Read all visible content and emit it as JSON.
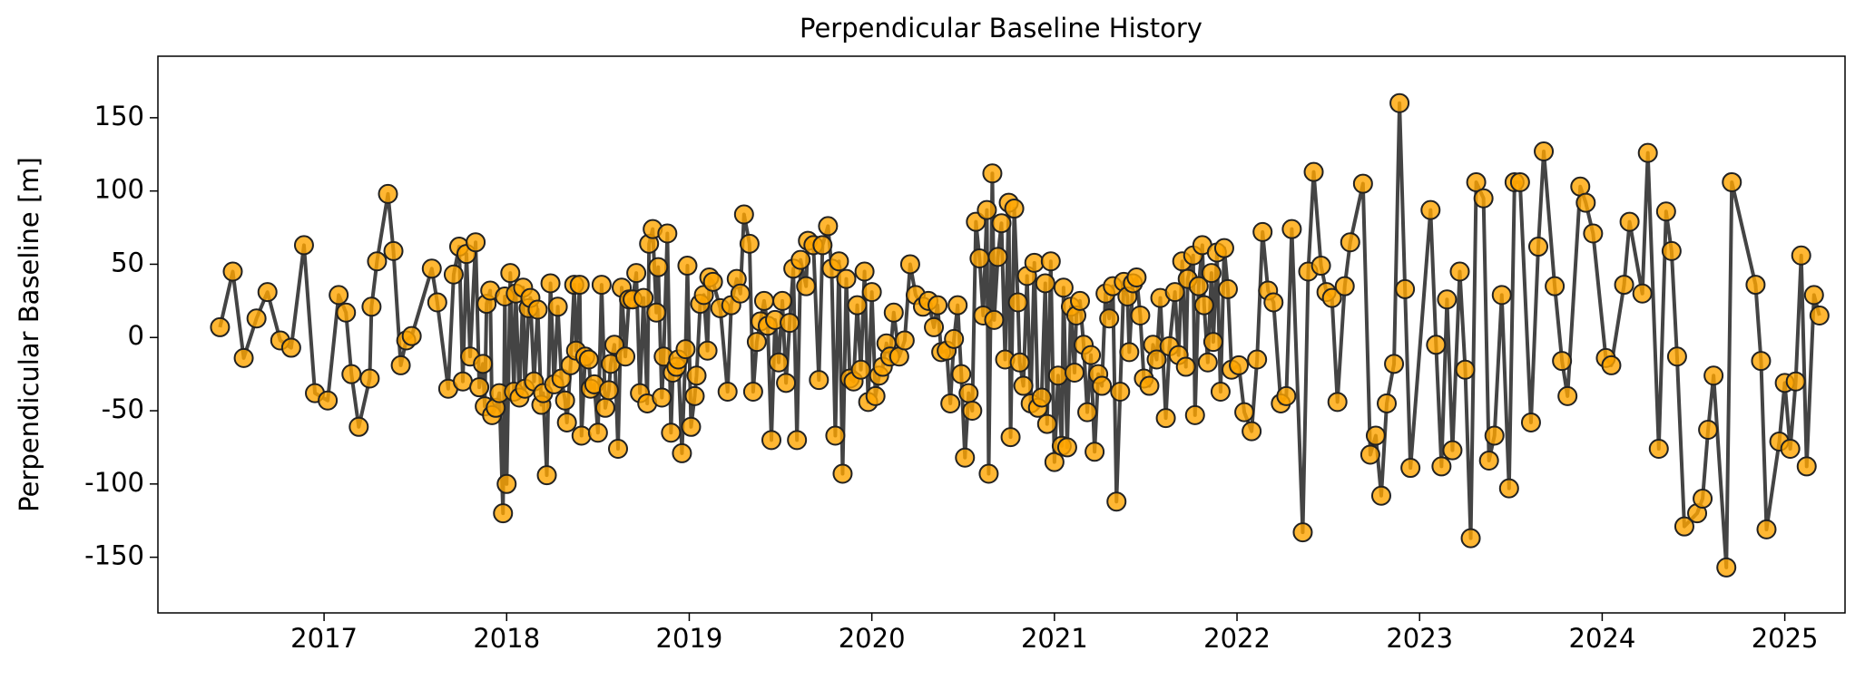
{
  "chart_data": {
    "type": "line",
    "title": "Perpendicular Baseline History",
    "ylabel": "Perpendicular Baseline [m]",
    "color": "#ffa500",
    "line_color": "#444444",
    "xlim": [
      2016.09,
      2025.33
    ],
    "xticks": [
      2017,
      2018,
      2019,
      2020,
      2021,
      2022,
      2023,
      2024,
      2025
    ],
    "ylim": [
      -188,
      192
    ],
    "yticks": [
      -150,
      -100,
      -50,
      0,
      50,
      100,
      150
    ],
    "x": [
      2016.43,
      2016.5,
      2016.56,
      2016.63,
      2016.69,
      2016.76,
      2016.82,
      2016.89,
      2016.95,
      2017.02,
      2017.08,
      2017.12,
      2017.15,
      2017.19,
      2017.25,
      2017.26,
      2017.29,
      2017.35,
      2017.38,
      2017.42,
      2017.45,
      2017.48,
      2017.59,
      2017.62,
      2017.68,
      2017.71,
      2017.74,
      2017.76,
      2017.78,
      2017.8,
      2017.83,
      2017.85,
      2017.87,
      2017.88,
      2017.89,
      2017.91,
      2017.92,
      2017.94,
      2017.96,
      2017.98,
      2017.99,
      2018.0,
      2018.02,
      2018.04,
      2018.05,
      2018.07,
      2018.09,
      2018.1,
      2018.12,
      2018.13,
      2018.15,
      2018.17,
      2018.19,
      2018.2,
      2018.22,
      2018.24,
      2018.26,
      2018.28,
      2018.3,
      2018.32,
      2018.33,
      2018.35,
      2018.37,
      2018.38,
      2018.4,
      2018.41,
      2018.43,
      2018.45,
      2018.46,
      2018.48,
      2018.5,
      2018.52,
      2018.54,
      2018.56,
      2018.57,
      2018.59,
      2018.61,
      2018.63,
      2018.65,
      2018.67,
      2018.69,
      2018.71,
      2018.73,
      2018.75,
      2018.77,
      2018.78,
      2018.8,
      2018.82,
      2018.83,
      2018.85,
      2018.86,
      2018.88,
      2018.9,
      2018.91,
      2018.93,
      2018.94,
      2018.96,
      2018.98,
      2018.99,
      2019.01,
      2019.03,
      2019.04,
      2019.06,
      2019.08,
      2019.1,
      2019.11,
      2019.13,
      2019.17,
      2019.21,
      2019.23,
      2019.26,
      2019.28,
      2019.3,
      2019.33,
      2019.35,
      2019.37,
      2019.39,
      2019.41,
      2019.43,
      2019.45,
      2019.47,
      2019.49,
      2019.51,
      2019.53,
      2019.55,
      2019.57,
      2019.59,
      2019.61,
      2019.64,
      2019.65,
      2019.68,
      2019.71,
      2019.73,
      2019.76,
      2019.78,
      2019.8,
      2019.82,
      2019.84,
      2019.86,
      2019.88,
      2019.9,
      2019.92,
      2019.94,
      2019.96,
      2019.98,
      2020.0,
      2020.02,
      2020.04,
      2020.06,
      2020.08,
      2020.1,
      2020.12,
      2020.15,
      2020.18,
      2020.21,
      2020.24,
      2020.28,
      2020.31,
      2020.34,
      2020.36,
      2020.38,
      2020.41,
      2020.43,
      2020.45,
      2020.47,
      2020.49,
      2020.51,
      2020.53,
      2020.55,
      2020.57,
      2020.59,
      2020.61,
      2020.63,
      2020.64,
      2020.66,
      2020.67,
      2020.69,
      2020.71,
      2020.73,
      2020.75,
      2020.76,
      2020.78,
      2020.8,
      2020.81,
      2020.83,
      2020.85,
      2020.87,
      2020.89,
      2020.91,
      2020.93,
      2020.95,
      2020.96,
      2020.98,
      2021.0,
      2021.02,
      2021.04,
      2021.05,
      2021.07,
      2021.09,
      2021.11,
      2021.12,
      2021.14,
      2021.16,
      2021.18,
      2021.2,
      2021.22,
      2021.24,
      2021.26,
      2021.28,
      2021.3,
      2021.32,
      2021.34,
      2021.36,
      2021.38,
      2021.4,
      2021.41,
      2021.43,
      2021.45,
      2021.47,
      2021.49,
      2021.52,
      2021.54,
      2021.56,
      2021.58,
      2021.61,
      2021.63,
      2021.66,
      2021.68,
      2021.7,
      2021.72,
      2021.73,
      2021.76,
      2021.77,
      2021.79,
      2021.81,
      2021.82,
      2021.84,
      2021.86,
      2021.87,
      2021.89,
      2021.91,
      2021.93,
      2021.95,
      2021.97,
      2022.01,
      2022.04,
      2022.08,
      2022.11,
      2022.14,
      2022.17,
      2022.2,
      2022.24,
      2022.27,
      2022.3,
      2022.36,
      2022.39,
      2022.42,
      2022.46,
      2022.49,
      2022.52,
      2022.55,
      2022.59,
      2022.62,
      2022.69,
      2022.73,
      2022.76,
      2022.79,
      2022.82,
      2022.86,
      2022.89,
      2022.92,
      2022.95,
      2023.06,
      2023.09,
      2023.12,
      2023.15,
      2023.18,
      2023.22,
      2023.25,
      2023.28,
      2023.31,
      2023.35,
      2023.38,
      2023.41,
      2023.45,
      2023.49,
      2023.52,
      2023.55,
      2023.61,
      2023.65,
      2023.68,
      2023.74,
      2023.78,
      2023.81,
      2023.88,
      2023.91,
      2023.95,
      2024.02,
      2024.05,
      2024.12,
      2024.15,
      2024.22,
      2024.25,
      2024.31,
      2024.35,
      2024.38,
      2024.41,
      2024.45,
      2024.52,
      2024.55,
      2024.58,
      2024.61,
      2024.68,
      2024.71,
      2024.84,
      2024.87,
      2024.9,
      2024.97,
      2025.0,
      2025.03,
      2025.06,
      2025.09,
      2025.12,
      2025.16,
      2025.19
    ],
    "values": [
      7,
      45,
      -14,
      13,
      31,
      -2,
      -7,
      63,
      -38,
      -43,
      29,
      17,
      -25,
      -61,
      -28,
      21,
      52,
      98,
      59,
      -19,
      -2,
      1,
      47,
      24,
      -35,
      43,
      62,
      -30,
      57,
      -13,
      65,
      -34,
      -18,
      -47,
      23,
      32,
      -53,
      -48,
      -38,
      -120,
      28,
      -100,
      44,
      -37,
      30,
      -41,
      34,
      -35,
      20,
      27,
      -30,
      19,
      -46,
      -38,
      -94,
      37,
      -32,
      21,
      -28,
      -43,
      -58,
      -19,
      36,
      -9,
      36,
      -67,
      -13,
      -15,
      -35,
      -32,
      -65,
      36,
      -48,
      -36,
      -18,
      -5,
      -76,
      34,
      -13,
      26,
      26,
      44,
      -38,
      27,
      -45,
      64,
      74,
      17,
      48,
      -41,
      -13,
      71,
      -65,
      -24,
      -20,
      -15,
      -79,
      -8,
      49,
      -61,
      -40,
      -26,
      23,
      29,
      -9,
      41,
      38,
      20,
      -37,
      22,
      40,
      30,
      84,
      64,
      -37,
      -3,
      11,
      25,
      8,
      -70,
      12,
      -17,
      25,
      -31,
      10,
      47,
      -70,
      53,
      35,
      66,
      63,
      -29,
      63,
      76,
      47,
      -67,
      52,
      -93,
      40,
      -28,
      -30,
      22,
      -22,
      45,
      -44,
      31,
      -40,
      -26,
      -20,
      -4,
      -13,
      17,
      -13,
      -2,
      50,
      29,
      21,
      25,
      7,
      22,
      -10,
      -9,
      -45,
      -1,
      22,
      -25,
      -82,
      -38,
      -50,
      79,
      54,
      15,
      87,
      -93,
      112,
      12,
      55,
      78,
      -15,
      92,
      -68,
      88,
      24,
      -17,
      -33,
      42,
      -45,
      51,
      -48,
      -41,
      37,
      -59,
      52,
      -85,
      -26,
      -74,
      34,
      -75,
      21,
      -24,
      15,
      25,
      -5,
      -51,
      -12,
      -78,
      -25,
      -33,
      30,
      13,
      35,
      -112,
      -37,
      38,
      28,
      -10,
      37,
      41,
      15,
      -28,
      -33,
      -5,
      -15,
      27,
      -55,
      -6,
      31,
      -12,
      52,
      -20,
      40,
      56,
      -53,
      35,
      63,
      22,
      -17,
      44,
      -3,
      58,
      -37,
      61,
      33,
      -22,
      -19,
      -51,
      -64,
      -15,
      72,
      32,
      24,
      -45,
      -40,
      74,
      -133,
      45,
      113,
      49,
      31,
      27,
      -44,
      35,
      65,
      105,
      -80,
      -67,
      -108,
      -45,
      -18,
      160,
      33,
      -89,
      87,
      -5,
      -88,
      26,
      -77,
      45,
      -22,
      -137,
      106,
      95,
      -84,
      -67,
      29,
      -103,
      106,
      106,
      -58,
      62,
      127,
      35,
      -16,
      -40,
      103,
      92,
      71,
      -14,
      -19,
      36,
      79,
      30,
      126,
      -76,
      86,
      59,
      -13,
      -129,
      -120,
      -110,
      -63,
      -26,
      -157,
      106,
      36,
      -16,
      -131,
      -71,
      -31,
      -76,
      -30,
      56,
      -88,
      29,
      15
    ]
  }
}
